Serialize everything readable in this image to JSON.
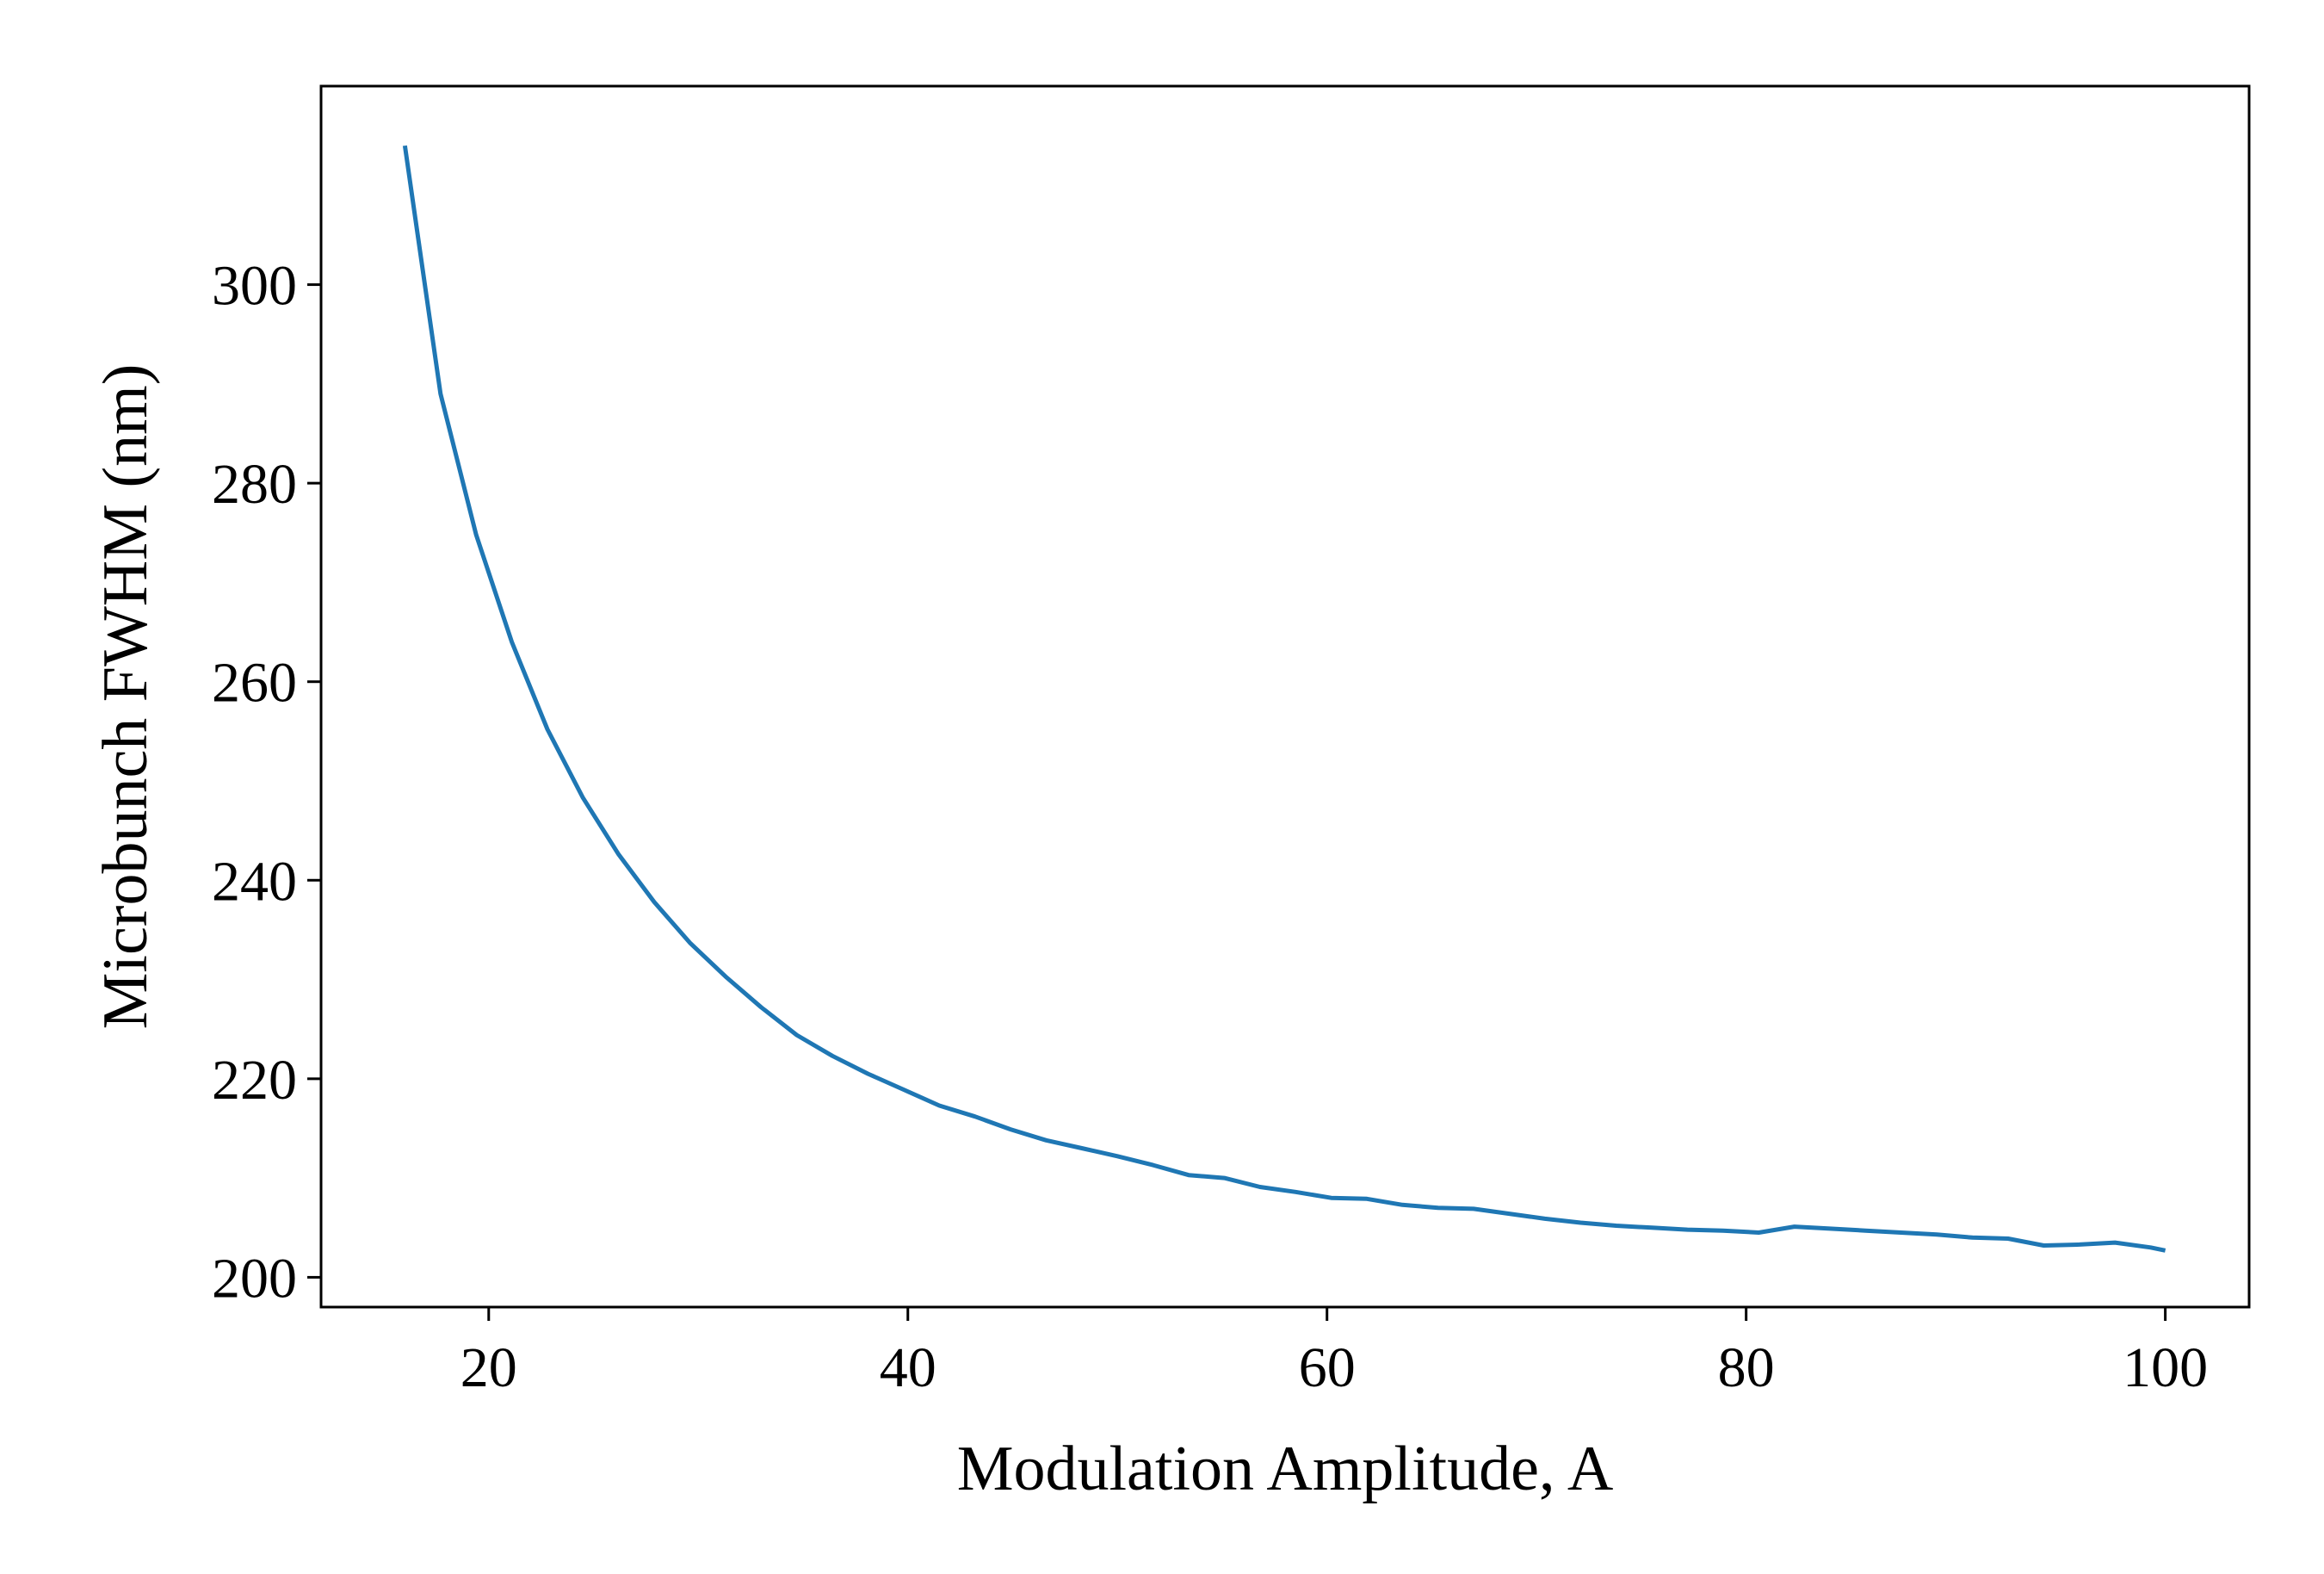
{
  "chart_data": {
    "type": "line",
    "title": "",
    "xlabel": "Modulation Amplitude, A",
    "ylabel": "Microbunch FWHM (nm)",
    "xlim": [
      12,
      104
    ],
    "ylim": [
      197,
      320
    ],
    "xticks": [
      20,
      40,
      60,
      80,
      100
    ],
    "yticks": [
      200,
      220,
      240,
      260,
      280,
      300
    ],
    "grid": false,
    "legend": "none",
    "series": [
      {
        "color": "#1f77b4",
        "x": [
          16,
          17.7,
          19.4,
          21.1,
          22.8,
          24.5,
          26.2,
          27.9,
          29.6,
          31.3,
          33.0,
          34.7,
          36.4,
          38.1,
          39.8,
          41.5,
          43.2,
          44.9,
          46.6,
          48.3,
          50.0,
          51.7,
          53.4,
          55.1,
          56.8,
          58.5,
          60.2,
          61.9,
          63.6,
          65.3,
          67.0,
          68.7,
          70.4,
          72.1,
          73.8,
          75.5,
          77.2,
          78.9,
          80.6,
          82.3,
          84.0,
          85.7,
          87.4,
          89.1,
          90.8,
          92.5,
          94.2,
          95.9,
          97.6,
          99.3,
          100
        ],
        "y": [
          314.0,
          289.0,
          274.8,
          264.0,
          255.2,
          248.3,
          242.6,
          237.8,
          233.7,
          230.3,
          227.2,
          224.4,
          222.3,
          220.5,
          218.9,
          217.3,
          216.2,
          214.9,
          213.8,
          213.0,
          212.2,
          211.3,
          210.3,
          210.0,
          209.1,
          208.6,
          208.0,
          207.9,
          207.3,
          207.0,
          206.9,
          206.4,
          205.9,
          205.5,
          205.2,
          205.0,
          204.8,
          204.7,
          204.5,
          205.1,
          204.9,
          204.7,
          204.5,
          204.3,
          204.0,
          203.9,
          203.2,
          203.3,
          203.5,
          203.0,
          202.7
        ]
      }
    ]
  }
}
